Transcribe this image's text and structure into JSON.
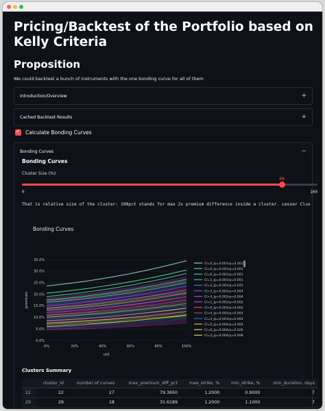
{
  "page": {
    "title": "Pricing/Backtest of the Portfolio based on Kelly Criteria",
    "section_title": "Proposition",
    "intro_text": "We could backtest a bunch of instruments with the one bonding curve for all of them"
  },
  "expanders": {
    "intro_label": "Introduction/Overview",
    "cached_label": "Cached Backtest Results",
    "bonding_label": "Bonding Curves"
  },
  "checkbox": {
    "label": "Calculate Bonding Curves",
    "checked": true
  },
  "bonding": {
    "subheader": "Bonding Curves",
    "slider_label": "Cluster Size (%)",
    "slider_value": "88",
    "slider_value_num": 88,
    "slider_min": "0",
    "slider_max": "100",
    "note": "That is relative size of the cluster: 100pct stands for max 2x premium difference inside a cluster. Lesser Clus"
  },
  "chart_data": {
    "type": "line",
    "title": "Bonding Curves",
    "xlabel": "util",
    "ylabel": "premium",
    "x_ticks": [
      "0%",
      "20%",
      "40%",
      "60%",
      "80%",
      "100%"
    ],
    "y_ticks": [
      "0.0%",
      "5.0%",
      "10.0%",
      "15.0%",
      "20.0%",
      "25.0%",
      "30.0%",
      "35.0%"
    ],
    "xlim": [
      0,
      1
    ],
    "ylim": [
      0,
      0.35
    ],
    "legend_position": "right",
    "series": [
      {
        "name": "Cl=0_lp=0.001rp=0.001",
        "color": "#8fd4c6",
        "start": 0.236,
        "end": 0.345
      },
      {
        "name": "Cl=0_lp=0.001rp=0.001",
        "color": "#5fd3a0",
        "start": 0.205,
        "end": 0.305
      },
      {
        "name": "Cl=0_lp=0.001rp=0.001",
        "color": "#4cc98f",
        "start": 0.19,
        "end": 0.29
      },
      {
        "name": "Cl=1_lp=0.001rp=0.001",
        "color": "#3ab0c8",
        "start": 0.175,
        "end": 0.265
      },
      {
        "name": "Cl=2_lp=0.001rp=0.025",
        "color": "#4a78d8",
        "start": 0.165,
        "end": 0.25
      },
      {
        "name": "Cl=3_lp=0.002rp=0.004",
        "color": "#6c5cd0",
        "start": 0.15,
        "end": 0.235
      },
      {
        "name": "Cl=3_lp=0.002rp=0.004",
        "color": "#9d4fc9",
        "start": 0.14,
        "end": 0.22
      },
      {
        "name": "Cl=1_lp=0.002rp=0.002",
        "color": "#c04ab0",
        "start": 0.13,
        "end": 0.205
      },
      {
        "name": "Cl=4_lp=0.002rp=0.002",
        "color": "#d04a8f",
        "start": 0.12,
        "end": 0.19
      },
      {
        "name": "Cl=4_lp=0.002rp=0.003",
        "color": "#c83a6a",
        "start": 0.11,
        "end": 0.175
      },
      {
        "name": "Cl=4_lp=0.003rp=0.004",
        "color": "#2a6fd8",
        "start": 0.1,
        "end": 0.16
      },
      {
        "name": "Cl=5_lp=0.004rp=0.004",
        "color": "#c9c24a",
        "start": 0.085,
        "end": 0.14
      },
      {
        "name": "Cl=6_lp=0.004rp=0.026",
        "color": "#d8d070",
        "start": 0.075,
        "end": 0.125
      },
      {
        "name": "Cl=3_lp=0.004rp=0.008",
        "color": "#e2d05a",
        "start": 0.06,
        "end": 0.11
      }
    ]
  },
  "clusters": {
    "title": "Clusters Summary",
    "columns": [
      "",
      "cluster_id",
      "number of curves",
      "max_premium_diff_pct",
      "max_strike, %",
      "min_strike, %",
      "min_duration, days"
    ],
    "rows": [
      [
        "22",
        "22",
        "27",
        "79.3650",
        "1.2000",
        "0.9000",
        "7"
      ],
      [
        "29",
        "29",
        "18",
        "31.6189",
        "1.2000",
        "1.1000",
        "7"
      ]
    ]
  }
}
